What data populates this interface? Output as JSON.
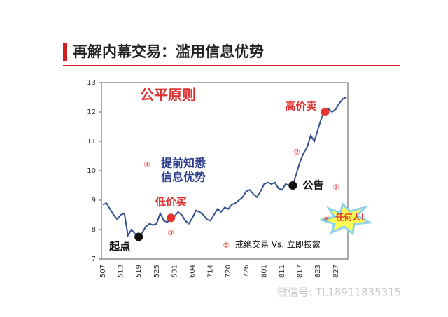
{
  "title": "再解内幕交易：滥用信息优势",
  "chart_data": {
    "type": "line",
    "categories": [
      "507",
      null,
      null,
      null,
      null,
      "513",
      null,
      null,
      null,
      null,
      "519",
      null,
      null,
      null,
      null,
      "525",
      null,
      null,
      null,
      null,
      "531",
      null,
      null,
      null,
      null,
      "604",
      null,
      null,
      null,
      null,
      "714",
      null,
      null,
      null,
      null,
      "720",
      null,
      null,
      null,
      null,
      "726",
      null,
      null,
      null,
      null,
      "801",
      null,
      null,
      null,
      null,
      "811",
      null,
      null,
      null,
      null,
      "817",
      null,
      null,
      null,
      null,
      "823",
      null,
      null,
      null,
      null,
      "827",
      null,
      null,
      null
    ],
    "values": [
      8.85,
      8.9,
      8.7,
      8.5,
      8.35,
      8.5,
      8.55,
      7.8,
      8.0,
      7.85,
      7.75,
      7.9,
      8.1,
      8.2,
      8.15,
      8.2,
      8.55,
      8.3,
      8.25,
      8.4,
      8.45,
      8.6,
      8.5,
      8.3,
      8.2,
      8.4,
      8.65,
      8.6,
      8.5,
      8.35,
      8.3,
      8.5,
      8.7,
      8.6,
      8.75,
      8.7,
      8.85,
      8.9,
      9.0,
      9.1,
      9.3,
      9.35,
      9.2,
      9.1,
      9.3,
      9.55,
      9.6,
      9.55,
      9.6,
      9.4,
      9.35,
      9.55,
      9.5,
      9.5,
      9.9,
      10.3,
      10.6,
      10.8,
      11.2,
      11.0,
      11.4,
      11.8,
      12.0,
      12.1,
      12.0,
      12.1,
      12.3,
      12.45,
      12.5
    ],
    "color": "#34508f",
    "ylim": [
      7,
      13
    ],
    "yticks": [
      7,
      8,
      9,
      10,
      11,
      12,
      13
    ],
    "markers": [
      {
        "label": "起点",
        "index": 10,
        "color": "#111111"
      },
      {
        "label": "低价买",
        "index": 19,
        "color": "#e8332e"
      },
      {
        "label": "公告",
        "index": 53,
        "color": "#111111"
      },
      {
        "label": "高价卖",
        "index": 62,
        "color": "#e8332e"
      }
    ],
    "annotations": [
      "公平原则",
      "④",
      "提前知悉",
      "信息优势",
      "①",
      "②",
      "③",
      "⑤",
      "戒绝交易 Vs. 立即披露",
      "⑥",
      "任何人!"
    ]
  },
  "watermark": "微信号: TL18911835315"
}
